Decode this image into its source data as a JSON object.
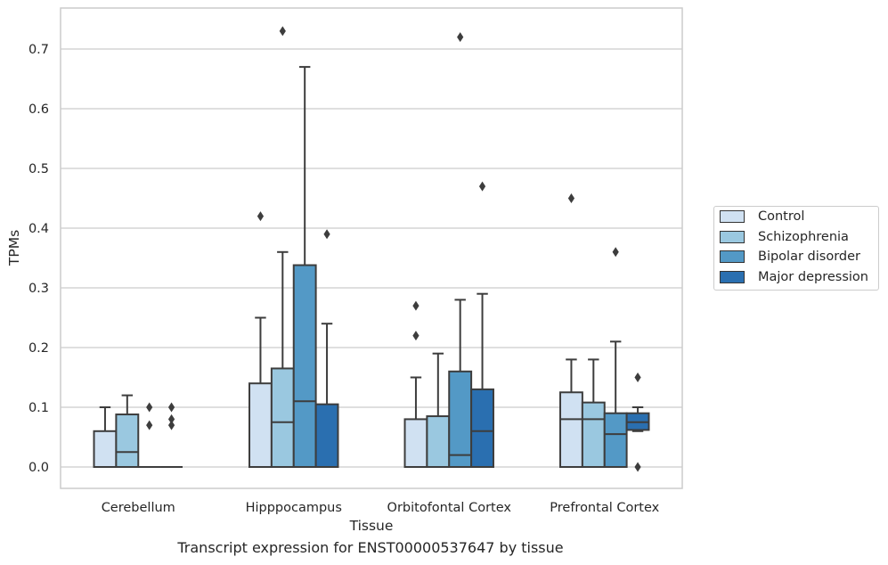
{
  "caption": "Transcript expression for ENST00000537647 by tissue",
  "chart_data": {
    "type": "box",
    "xlabel": "Tissue",
    "ylabel": "TPMs",
    "ylim": [
      -0.035,
      0.77
    ],
    "yticks": [
      "0.0",
      "0.1",
      "0.2",
      "0.3",
      "0.4",
      "0.5",
      "0.6",
      "0.7"
    ],
    "categories": [
      "Cerebellum",
      "Hipppocampus",
      "Orbitofontal Cortex",
      "Prefrontal Cortex"
    ],
    "grid": "horizontal",
    "legend_position": "right",
    "series": [
      {
        "name": "Control",
        "color": "#d0e1f2",
        "boxes": [
          {
            "q1": 0.0,
            "median": 0.0,
            "q3": 0.06,
            "whislo": 0.0,
            "whishi": 0.1,
            "outliers": []
          },
          {
            "q1": 0.0,
            "median": 0.0,
            "q3": 0.14,
            "whislo": 0.0,
            "whishi": 0.25,
            "outliers": [
              0.42
            ]
          },
          {
            "q1": 0.0,
            "median": 0.0,
            "q3": 0.08,
            "whislo": 0.0,
            "whishi": 0.15,
            "outliers": [
              0.22,
              0.27
            ]
          },
          {
            "q1": 0.0,
            "median": 0.08,
            "q3": 0.125,
            "whislo": 0.0,
            "whishi": 0.18,
            "outliers": [
              0.45
            ]
          }
        ]
      },
      {
        "name": "Schizophrenia",
        "color": "#9ac8e0",
        "boxes": [
          {
            "q1": 0.0,
            "median": 0.025,
            "q3": 0.088,
            "whislo": 0.0,
            "whishi": 0.12,
            "outliers": []
          },
          {
            "q1": 0.0,
            "median": 0.075,
            "q3": 0.165,
            "whislo": 0.0,
            "whishi": 0.36,
            "outliers": [
              0.73
            ]
          },
          {
            "q1": 0.0,
            "median": 0.0,
            "q3": 0.085,
            "whislo": 0.0,
            "whishi": 0.19,
            "outliers": []
          },
          {
            "q1": 0.0,
            "median": 0.08,
            "q3": 0.108,
            "whislo": 0.0,
            "whishi": 0.18,
            "outliers": []
          }
        ]
      },
      {
        "name": "Bipolar disorder",
        "color": "#5399c6",
        "boxes": [
          {
            "q1": 0.0,
            "median": 0.0,
            "q3": 0.0,
            "whislo": 0.0,
            "whishi": 0.0,
            "outliers": [
              0.07,
              0.1
            ]
          },
          {
            "q1": 0.0,
            "median": 0.11,
            "q3": 0.338,
            "whislo": 0.0,
            "whishi": 0.67,
            "outliers": []
          },
          {
            "q1": 0.0,
            "median": 0.02,
            "q3": 0.16,
            "whislo": 0.0,
            "whishi": 0.28,
            "outliers": [
              0.72
            ]
          },
          {
            "q1": 0.0,
            "median": 0.055,
            "q3": 0.09,
            "whislo": 0.0,
            "whishi": 0.21,
            "outliers": [
              0.36
            ]
          }
        ]
      },
      {
        "name": "Major depression",
        "color": "#2a6fb0",
        "boxes": [
          {
            "q1": 0.0,
            "median": 0.0,
            "q3": 0.0,
            "whislo": 0.0,
            "whishi": 0.0,
            "outliers": [
              0.07,
              0.08,
              0.1
            ]
          },
          {
            "q1": 0.0,
            "median": 0.0,
            "q3": 0.105,
            "whislo": 0.0,
            "whishi": 0.24,
            "outliers": [
              0.39
            ]
          },
          {
            "q1": 0.0,
            "median": 0.06,
            "q3": 0.13,
            "whislo": 0.0,
            "whishi": 0.29,
            "outliers": [
              0.47
            ]
          },
          {
            "q1": 0.062,
            "median": 0.075,
            "q3": 0.09,
            "whislo": 0.06,
            "whishi": 0.1,
            "outliers": [
              0.0,
              0.15
            ]
          }
        ]
      }
    ]
  }
}
